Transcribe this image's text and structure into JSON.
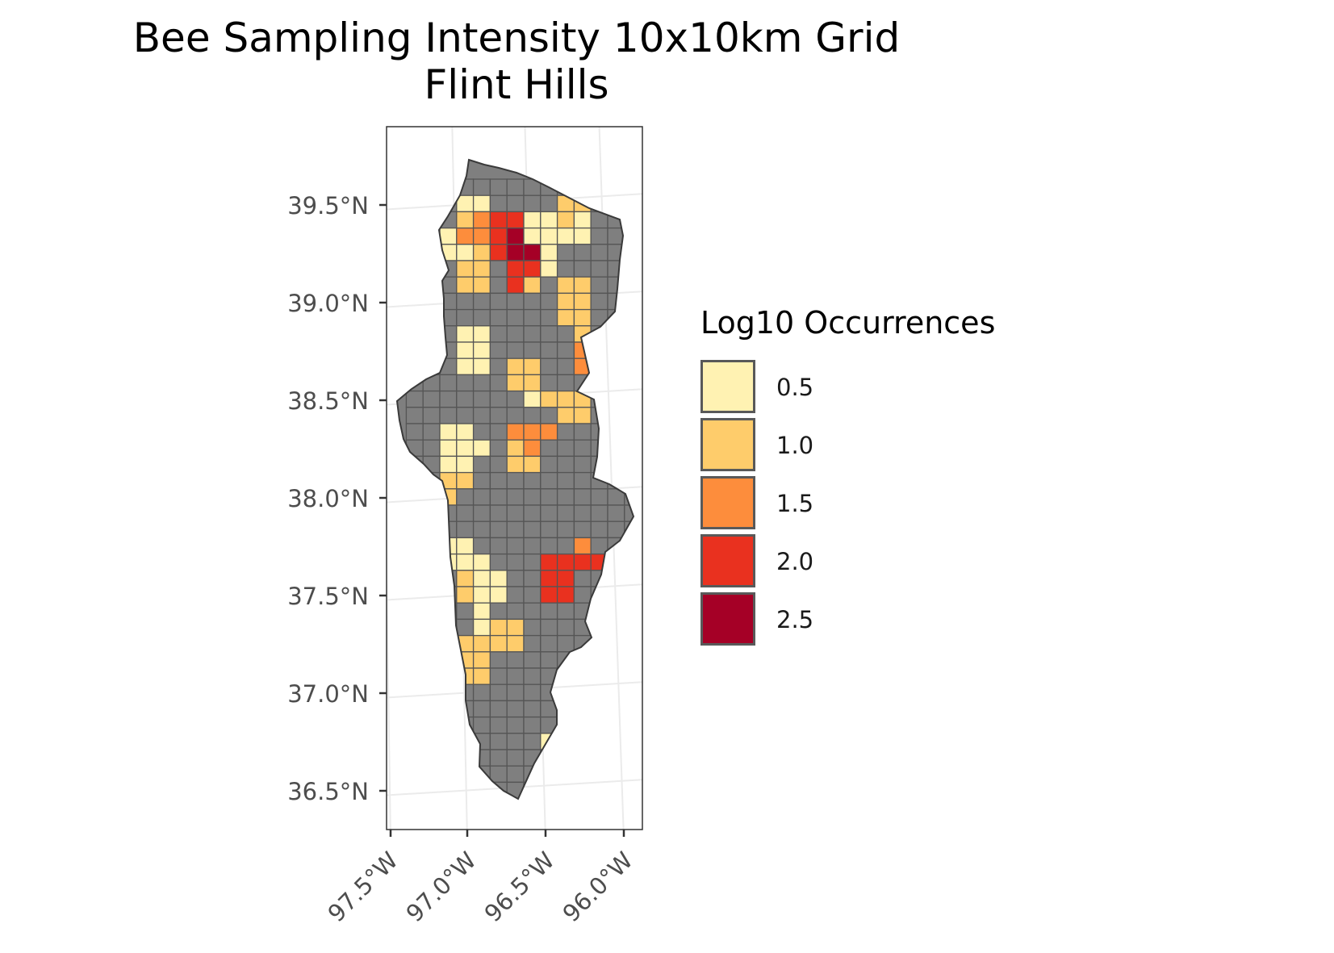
{
  "title": {
    "line1": "Bee Sampling Intensity 10x10km Grid",
    "line2": "Flint Hills"
  },
  "axes": {
    "y_ticks": [
      "39.5°N",
      "39.0°N",
      "38.5°N",
      "38.0°N",
      "37.5°N",
      "37.0°N",
      "36.5°N"
    ],
    "x_ticks": [
      "97.5°W",
      "97.0°W",
      "96.5°W",
      "96.0°W"
    ]
  },
  "legend": {
    "title": "Log10 Occurrences",
    "items": [
      {
        "label": "0.5",
        "color": "#fff2b2"
      },
      {
        "label": "1.0",
        "color": "#fecc6b"
      },
      {
        "label": "1.5",
        "color": "#fd8d3c"
      },
      {
        "label": "2.0",
        "color": "#e9311f"
      },
      {
        "label": "2.5",
        "color": "#a50026"
      }
    ]
  },
  "colors": {
    "land": "#7f7f7f",
    "grid_line": "#555555",
    "panel_border": "#333333",
    "graticule": "#ebebeb"
  }
}
